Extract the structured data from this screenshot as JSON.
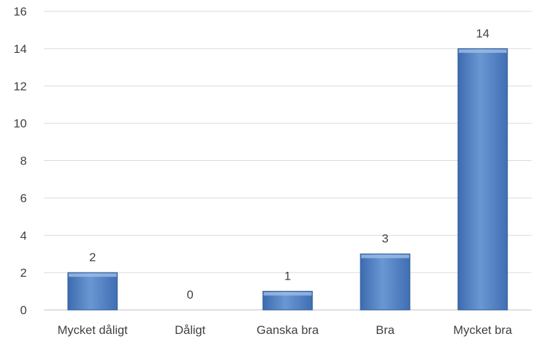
{
  "chart_data": {
    "type": "bar",
    "title": "",
    "xlabel": "",
    "ylabel": "",
    "categories": [
      "Mycket dåligt",
      "Dåligt",
      "Ganska bra",
      "Bra",
      "Mycket bra"
    ],
    "values": [
      2,
      0,
      1,
      3,
      14
    ],
    "data_labels": [
      "2",
      "0",
      "1",
      "3",
      "14"
    ],
    "ylim": [
      0,
      16
    ],
    "yticks": [
      0,
      2,
      4,
      6,
      8,
      10,
      12,
      14,
      16
    ],
    "grid": true,
    "legend": "none",
    "bar_color": "#4f81bd",
    "bar_color_light": "#6f9bd6",
    "bar_color_dark": "#3d6aa8"
  }
}
